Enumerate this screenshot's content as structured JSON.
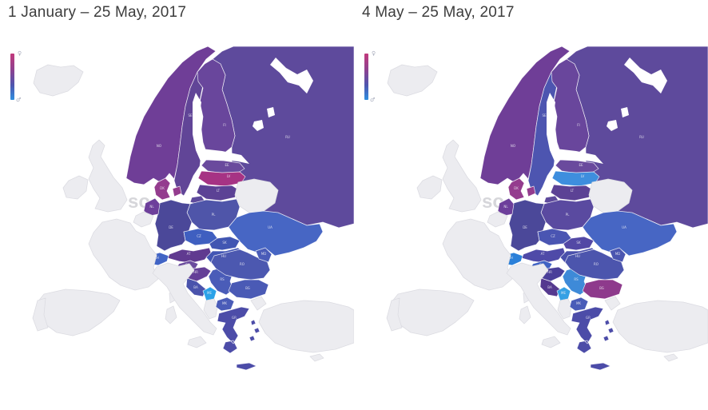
{
  "panels": [
    {
      "title": "1 January – 25 May, 2017",
      "country_colors": {
        "NO": "#6f3e97",
        "SE": "#614597",
        "FI": "#69469c",
        "RU": "#5e4a9c",
        "EE": "#6a4a9d",
        "LV": "#a63384",
        "LT": "#5c4295",
        "DK": "#943c8e",
        "NL": "#6d3f9b",
        "DE": "#4b4899",
        "PL": "#4f55a9",
        "CZ": "#3f5fc0",
        "SK": "#4156b2",
        "AT": "#603a90",
        "CH": "#4164c5",
        "HU": "#4356b4",
        "SI": "#6a4b9d",
        "HR": "#643f97",
        "BA": "#4a53ac",
        "RS": "#4a5cb8",
        "ME": "#2ba2e8",
        "MK": "#4a5cb8",
        "RO": "#4c58b0",
        "MD": "#4a5cb8",
        "BG": "#4a5ab5",
        "GR": "#4c4ca8",
        "UA": "#4766c4"
      }
    },
    {
      "title": "4 May – 25 May, 2017",
      "country_colors": {
        "NO": "#6f3e97",
        "SE": "#4d55b0",
        "FI": "#69469c",
        "RU": "#5e4a9c",
        "EE": "#6a4a9d",
        "LV": "#3e8ede",
        "LT": "#5c4295",
        "DK": "#943c8e",
        "NL": "#6d3f9b",
        "DE": "#4b4899",
        "PL": "#5a4aa0",
        "CZ": "#4a55b2",
        "SK": "#5348a5",
        "AT": "#4f4aa8",
        "CH": "#2b80d9",
        "HU": "#4a50ab",
        "SI": "#3f62c4",
        "HR": "#4a3f99",
        "BA": "#55398f",
        "RS": "#3e8ad8",
        "ME": "#35a0e4",
        "MK": "#4a5cb8",
        "RO": "#4c55ad",
        "MD": "#4a55b0",
        "BG": "#8e3a8c",
        "GR": "#4c4ca8",
        "UA": "#4766c4"
      }
    }
  ],
  "legend": {
    "top_label": "♀",
    "bottom_label": "♂",
    "gradient": [
      "#c23a7c",
      "#8e4190",
      "#4f55ae",
      "#2f8fe0"
    ]
  },
  "map": {
    "sea_color": "#ffffff",
    "no_data_fill": "#ececf0",
    "no_data_stroke": "#dcdce2",
    "border_color": "#ffffff",
    "label_color": "#f2f2f7",
    "watermark": "so"
  }
}
